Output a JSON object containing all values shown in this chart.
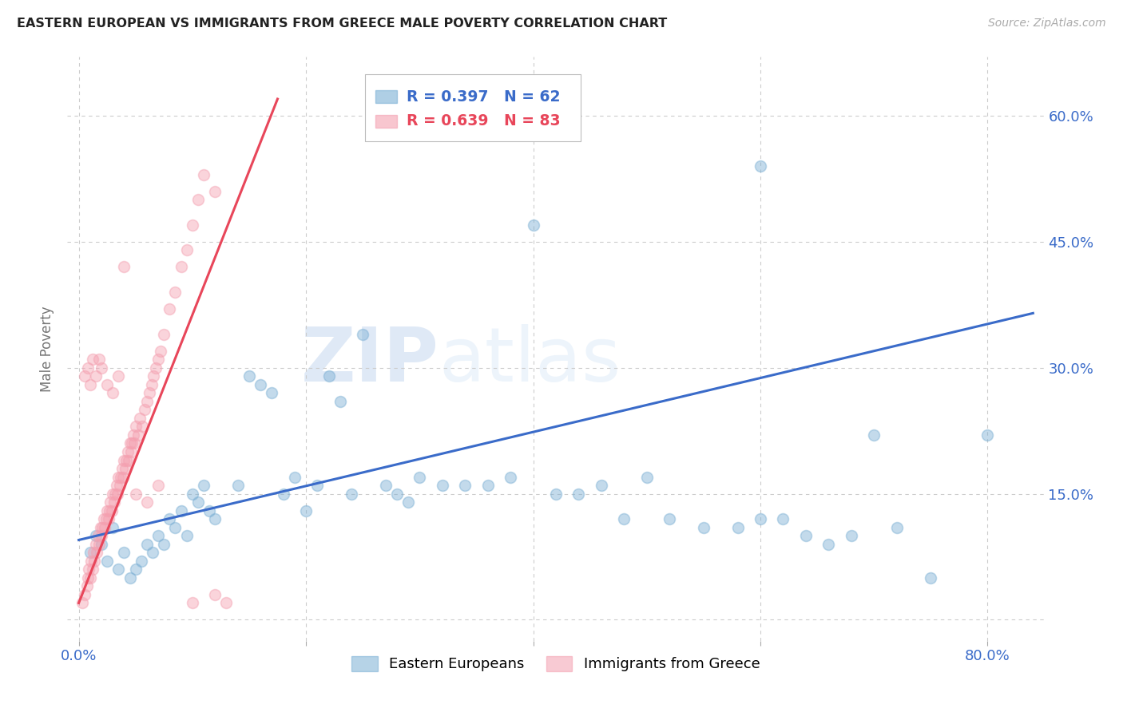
{
  "title": "EASTERN EUROPEAN VS IMMIGRANTS FROM GREECE MALE POVERTY CORRELATION CHART",
  "source": "Source: ZipAtlas.com",
  "ylabel": "Male Poverty",
  "x_ticks": [
    0.0,
    0.2,
    0.4,
    0.6,
    0.8
  ],
  "y_ticks": [
    0.0,
    0.15,
    0.3,
    0.45,
    0.6
  ],
  "xlim": [
    -0.01,
    0.85
  ],
  "ylim": [
    -0.025,
    0.67
  ],
  "background_color": "#ffffff",
  "grid_color": "#cccccc",
  "watermark_zip": "ZIP",
  "watermark_atlas": "atlas",
  "blue_color": "#7bafd4",
  "pink_color": "#f4a0b0",
  "blue_line_color": "#3a6bc9",
  "pink_line_color": "#e8465a",
  "legend_R1": "R = 0.397",
  "legend_N1": "N = 62",
  "legend_R2": "R = 0.639",
  "legend_N2": "N = 83",
  "label1": "Eastern Europeans",
  "label2": "Immigrants from Greece",
  "blue_trend_x0": 0.0,
  "blue_trend_y0": 0.095,
  "blue_trend_x1": 0.84,
  "blue_trend_y1": 0.365,
  "pink_trend_x0": 0.0,
  "pink_trend_y0": 0.02,
  "pink_trend_x1": 0.175,
  "pink_trend_y1": 0.62,
  "blue_x": [
    0.01,
    0.015,
    0.02,
    0.025,
    0.03,
    0.035,
    0.04,
    0.045,
    0.05,
    0.055,
    0.06,
    0.065,
    0.07,
    0.075,
    0.08,
    0.085,
    0.09,
    0.095,
    0.1,
    0.105,
    0.11,
    0.115,
    0.12,
    0.14,
    0.15,
    0.16,
    0.17,
    0.18,
    0.19,
    0.2,
    0.21,
    0.22,
    0.23,
    0.24,
    0.25,
    0.27,
    0.28,
    0.29,
    0.3,
    0.32,
    0.34,
    0.36,
    0.38,
    0.4,
    0.42,
    0.44,
    0.46,
    0.48,
    0.5,
    0.52,
    0.55,
    0.58,
    0.6,
    0.62,
    0.64,
    0.66,
    0.68,
    0.7,
    0.72,
    0.75,
    0.6,
    0.8
  ],
  "blue_y": [
    0.08,
    0.1,
    0.09,
    0.07,
    0.11,
    0.06,
    0.08,
    0.05,
    0.06,
    0.07,
    0.09,
    0.08,
    0.1,
    0.09,
    0.12,
    0.11,
    0.13,
    0.1,
    0.15,
    0.14,
    0.16,
    0.13,
    0.12,
    0.16,
    0.29,
    0.28,
    0.27,
    0.15,
    0.17,
    0.13,
    0.16,
    0.29,
    0.26,
    0.15,
    0.34,
    0.16,
    0.15,
    0.14,
    0.17,
    0.16,
    0.16,
    0.16,
    0.17,
    0.47,
    0.15,
    0.15,
    0.16,
    0.12,
    0.17,
    0.12,
    0.11,
    0.11,
    0.12,
    0.12,
    0.1,
    0.09,
    0.1,
    0.22,
    0.11,
    0.05,
    0.54,
    0.22
  ],
  "pink_x": [
    0.003,
    0.005,
    0.007,
    0.008,
    0.009,
    0.01,
    0.011,
    0.012,
    0.013,
    0.014,
    0.015,
    0.016,
    0.017,
    0.018,
    0.019,
    0.02,
    0.021,
    0.022,
    0.023,
    0.024,
    0.025,
    0.026,
    0.027,
    0.028,
    0.029,
    0.03,
    0.031,
    0.032,
    0.033,
    0.034,
    0.035,
    0.036,
    0.037,
    0.038,
    0.039,
    0.04,
    0.041,
    0.042,
    0.043,
    0.044,
    0.045,
    0.046,
    0.047,
    0.048,
    0.049,
    0.05,
    0.052,
    0.054,
    0.056,
    0.058,
    0.06,
    0.062,
    0.064,
    0.066,
    0.068,
    0.07,
    0.072,
    0.075,
    0.08,
    0.085,
    0.09,
    0.095,
    0.1,
    0.105,
    0.11,
    0.12,
    0.13,
    0.005,
    0.008,
    0.01,
    0.012,
    0.015,
    0.018,
    0.02,
    0.025,
    0.03,
    0.035,
    0.04,
    0.05,
    0.06,
    0.07,
    0.1,
    0.12
  ],
  "pink_y": [
    0.02,
    0.03,
    0.04,
    0.05,
    0.06,
    0.05,
    0.07,
    0.06,
    0.08,
    0.07,
    0.09,
    0.08,
    0.1,
    0.09,
    0.11,
    0.1,
    0.11,
    0.12,
    0.11,
    0.12,
    0.13,
    0.12,
    0.13,
    0.14,
    0.13,
    0.15,
    0.14,
    0.15,
    0.16,
    0.15,
    0.17,
    0.16,
    0.17,
    0.18,
    0.17,
    0.19,
    0.18,
    0.19,
    0.2,
    0.19,
    0.21,
    0.2,
    0.21,
    0.22,
    0.21,
    0.23,
    0.22,
    0.24,
    0.23,
    0.25,
    0.26,
    0.27,
    0.28,
    0.29,
    0.3,
    0.31,
    0.32,
    0.34,
    0.37,
    0.39,
    0.42,
    0.44,
    0.47,
    0.5,
    0.53,
    0.51,
    0.02,
    0.29,
    0.3,
    0.28,
    0.31,
    0.29,
    0.31,
    0.3,
    0.28,
    0.27,
    0.29,
    0.42,
    0.15,
    0.14,
    0.16,
    0.02,
    0.03
  ]
}
